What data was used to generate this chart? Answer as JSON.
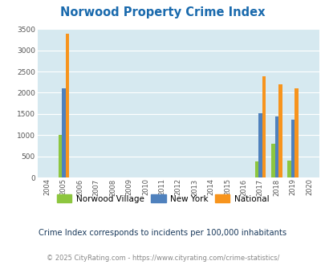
{
  "title": "Norwood Property Crime Index",
  "years": [
    2004,
    2005,
    2006,
    2007,
    2008,
    2009,
    2010,
    2011,
    2012,
    2013,
    2014,
    2015,
    2016,
    2017,
    2018,
    2019,
    2020
  ],
  "norwood_village": [
    0,
    1000,
    0,
    0,
    0,
    0,
    0,
    0,
    0,
    0,
    0,
    0,
    0,
    390,
    790,
    395,
    0
  ],
  "new_york": [
    0,
    2100,
    0,
    0,
    0,
    0,
    0,
    0,
    0,
    0,
    0,
    0,
    0,
    1510,
    1450,
    1370,
    0
  ],
  "national": [
    0,
    3400,
    0,
    0,
    0,
    0,
    0,
    0,
    0,
    0,
    0,
    0,
    0,
    2380,
    2200,
    2110,
    0
  ],
  "ylim": [
    0,
    3500
  ],
  "yticks": [
    0,
    500,
    1000,
    1500,
    2000,
    2500,
    3000,
    3500
  ],
  "color_norwood": "#8dc63f",
  "color_ny": "#4f81bd",
  "color_national": "#f7941d",
  "bg_color": "#d6e9f0",
  "grid_color": "#ffffff",
  "title_color": "#1a6aad",
  "legend_labels": [
    "Norwood Village",
    "New York",
    "National"
  ],
  "footnote1": "Crime Index corresponds to incidents per 100,000 inhabitants",
  "footnote2": "© 2025 CityRating.com - https://www.cityrating.com/crime-statistics/",
  "bar_width": 0.22
}
